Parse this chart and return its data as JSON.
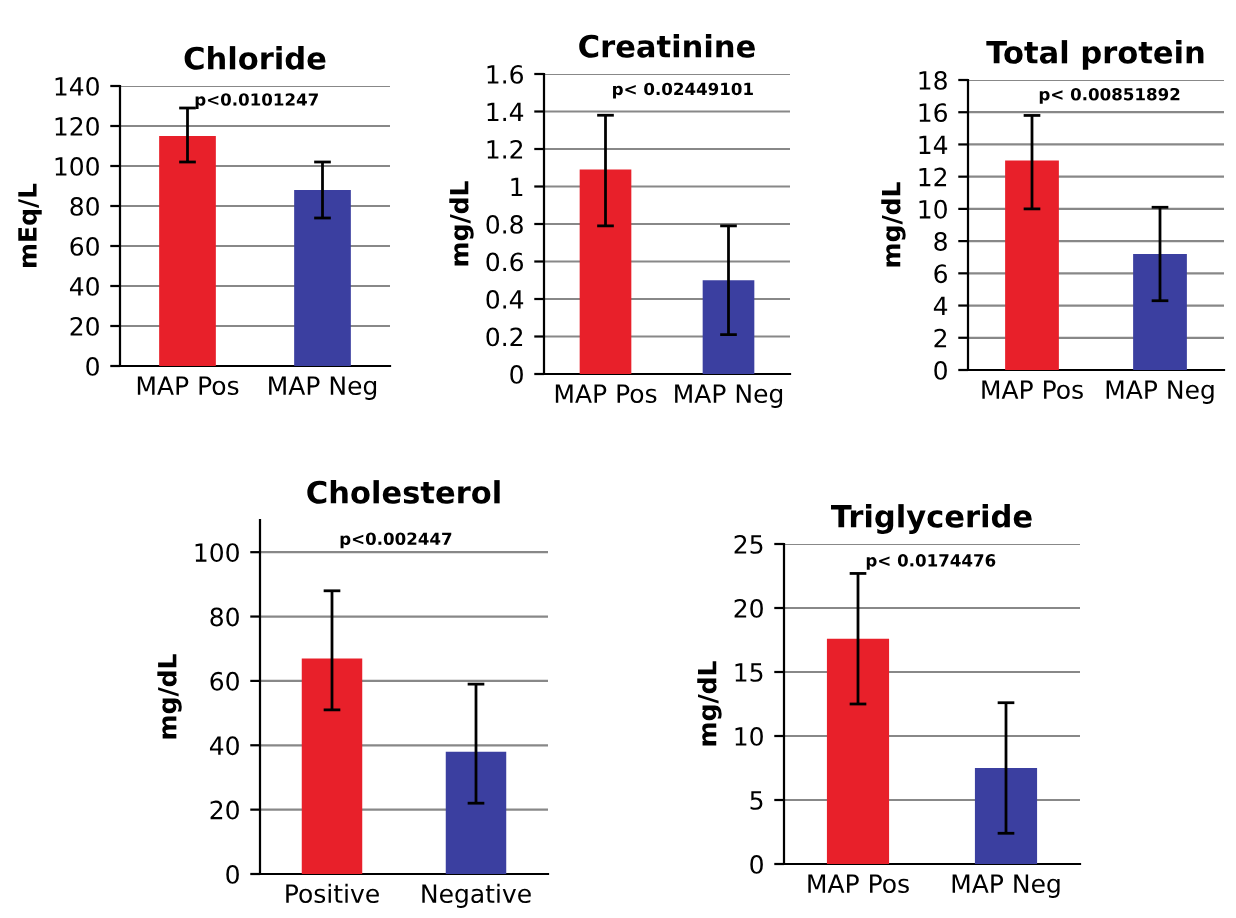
{
  "chart_data": [
    {
      "type": "bar",
      "title": "Chloride",
      "ylabel": "mEq/L",
      "categories": [
        "MAP Pos",
        "MAP Neg"
      ],
      "values": [
        115,
        88
      ],
      "colors": [
        "#e8202a",
        "#3b3fa0"
      ],
      "errors": [
        [
          102,
          129
        ],
        [
          74,
          102
        ]
      ],
      "ylim": [
        0,
        140
      ],
      "yticks": [
        0,
        20,
        40,
        60,
        80,
        100,
        120,
        140
      ],
      "grid": "y",
      "annotations": [
        "p<0.0101247"
      ]
    },
    {
      "type": "bar",
      "title": "Creatinine",
      "ylabel": "mg/dL",
      "categories": [
        "MAP Pos",
        "MAP Neg"
      ],
      "values": [
        1.09,
        0.5
      ],
      "colors": [
        "#e8202a",
        "#3b3fa0"
      ],
      "errors": [
        [
          0.79,
          1.38
        ],
        [
          0.21,
          0.79
        ]
      ],
      "ylim": [
        0,
        1.6
      ],
      "yticks": [
        0,
        {
          "value": 0.2,
          "label": "0.2"
        },
        {
          "value": 0.4,
          "label": "0.4"
        },
        {
          "value": 0.6,
          "label": "0.6"
        },
        {
          "value": 0.8,
          "label": "0.8"
        },
        1,
        {
          "value": 1.2,
          "label": "1.2"
        },
        {
          "value": 1.4,
          "label": "1.4"
        },
        {
          "value": 1.6,
          "label": "1.6"
        }
      ],
      "grid": "y",
      "annotations": [
        "p< 0.02449101"
      ]
    },
    {
      "type": "bar",
      "title": "Total protein",
      "ylabel": "mg/dL",
      "categories": [
        "MAP Pos",
        "MAP Neg"
      ],
      "values": [
        13,
        7.2
      ],
      "colors": [
        "#e8202a",
        "#3b3fa0"
      ],
      "errors": [
        [
          10,
          15.8
        ],
        [
          4.3,
          10.1
        ]
      ],
      "ylim": [
        0,
        18
      ],
      "yticks": [
        0,
        2,
        4,
        6,
        8,
        10,
        12,
        14,
        16,
        18
      ],
      "grid": "y",
      "annotations": [
        "p< 0.00851892"
      ]
    },
    {
      "type": "bar",
      "title": "Cholesterol",
      "ylabel": "mg/dL",
      "categories": [
        "Positive",
        "Negative"
      ],
      "values": [
        67,
        38
      ],
      "colors": [
        "#e8202a",
        "#3b3fa0"
      ],
      "errors": [
        [
          51,
          88
        ],
        [
          22,
          59
        ]
      ],
      "ylim": [
        0,
        110
      ],
      "yticks": [
        0,
        20,
        40,
        60,
        80,
        100
      ],
      "grid": "y",
      "annotations": [
        "p<0.002447"
      ]
    },
    {
      "type": "bar",
      "title": "Triglyceride",
      "ylabel": "mg/dL",
      "categories": [
        "MAP Pos",
        "MAP Neg"
      ],
      "values": [
        17.6,
        7.5
      ],
      "colors": [
        "#e8202a",
        "#3b3fa0"
      ],
      "errors": [
        [
          12.5,
          22.7
        ],
        [
          2.4,
          12.6
        ]
      ],
      "ylim": [
        0,
        25
      ],
      "yticks": [
        0,
        5,
        10,
        15,
        20,
        25
      ],
      "grid": "y",
      "annotations": [
        "p< 0.0174476"
      ]
    }
  ]
}
